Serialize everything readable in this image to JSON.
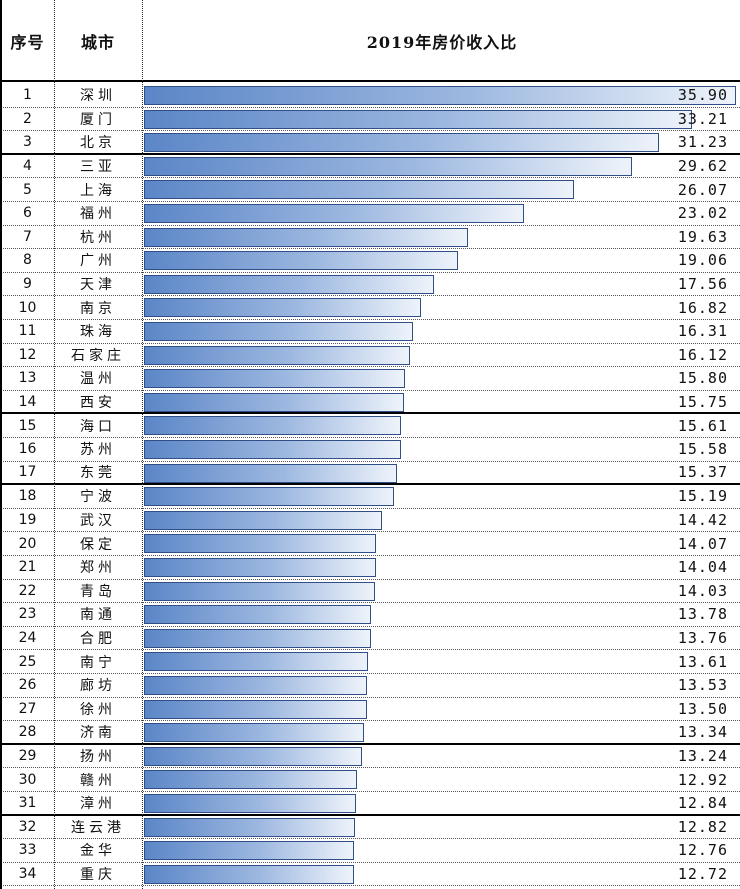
{
  "header": {
    "col_index": "序号",
    "col_city": "城市",
    "col_chart": "2019年房价收入比"
  },
  "chart_data": {
    "type": "bar",
    "orientation": "horizontal",
    "title": "2019年房价收入比",
    "bar_color": "#5b86c7",
    "border_color": "#2f4f86",
    "xlim": [
      0,
      35.9
    ],
    "rows": [
      {
        "index": "1",
        "city": "深圳",
        "value": "35.90"
      },
      {
        "index": "2",
        "city": "厦门",
        "value": "33.21"
      },
      {
        "index": "3",
        "city": "北京",
        "value": "31.23"
      },
      {
        "index": "4",
        "city": "三亚",
        "value": "29.62"
      },
      {
        "index": "5",
        "city": "上海",
        "value": "26.07"
      },
      {
        "index": "6",
        "city": "福州",
        "value": "23.02"
      },
      {
        "index": "7",
        "city": "杭州",
        "value": "19.63"
      },
      {
        "index": "8",
        "city": "广州",
        "value": "19.06"
      },
      {
        "index": "9",
        "city": "天津",
        "value": "17.56"
      },
      {
        "index": "10",
        "city": "南京",
        "value": "16.82"
      },
      {
        "index": "11",
        "city": "珠海",
        "value": "16.31"
      },
      {
        "index": "12",
        "city": "石家庄",
        "value": "16.12"
      },
      {
        "index": "13",
        "city": "温州",
        "value": "15.80"
      },
      {
        "index": "14",
        "city": "西安",
        "value": "15.75"
      },
      {
        "index": "15",
        "city": "海口",
        "value": "15.61"
      },
      {
        "index": "16",
        "city": "苏州",
        "value": "15.58"
      },
      {
        "index": "17",
        "city": "东莞",
        "value": "15.37"
      },
      {
        "index": "18",
        "city": "宁波",
        "value": "15.19"
      },
      {
        "index": "19",
        "city": "武汉",
        "value": "14.42"
      },
      {
        "index": "20",
        "city": "保定",
        "value": "14.07"
      },
      {
        "index": "21",
        "city": "郑州",
        "value": "14.04"
      },
      {
        "index": "22",
        "city": "青岛",
        "value": "14.03"
      },
      {
        "index": "23",
        "city": "南通",
        "value": "13.78"
      },
      {
        "index": "24",
        "city": "合肥",
        "value": "13.76"
      },
      {
        "index": "25",
        "city": "南宁",
        "value": "13.61"
      },
      {
        "index": "26",
        "city": "廊坊",
        "value": "13.53"
      },
      {
        "index": "27",
        "city": "徐州",
        "value": "13.50"
      },
      {
        "index": "28",
        "city": "济南",
        "value": "13.34"
      },
      {
        "index": "29",
        "city": "扬州",
        "value": "13.24"
      },
      {
        "index": "30",
        "city": "赣州",
        "value": "12.92"
      },
      {
        "index": "31",
        "city": "漳州",
        "value": "12.84"
      },
      {
        "index": "32",
        "city": "连云港",
        "value": "12.82"
      },
      {
        "index": "33",
        "city": "金华",
        "value": "12.76"
      },
      {
        "index": "34",
        "city": "重庆",
        "value": "12.72"
      }
    ]
  }
}
